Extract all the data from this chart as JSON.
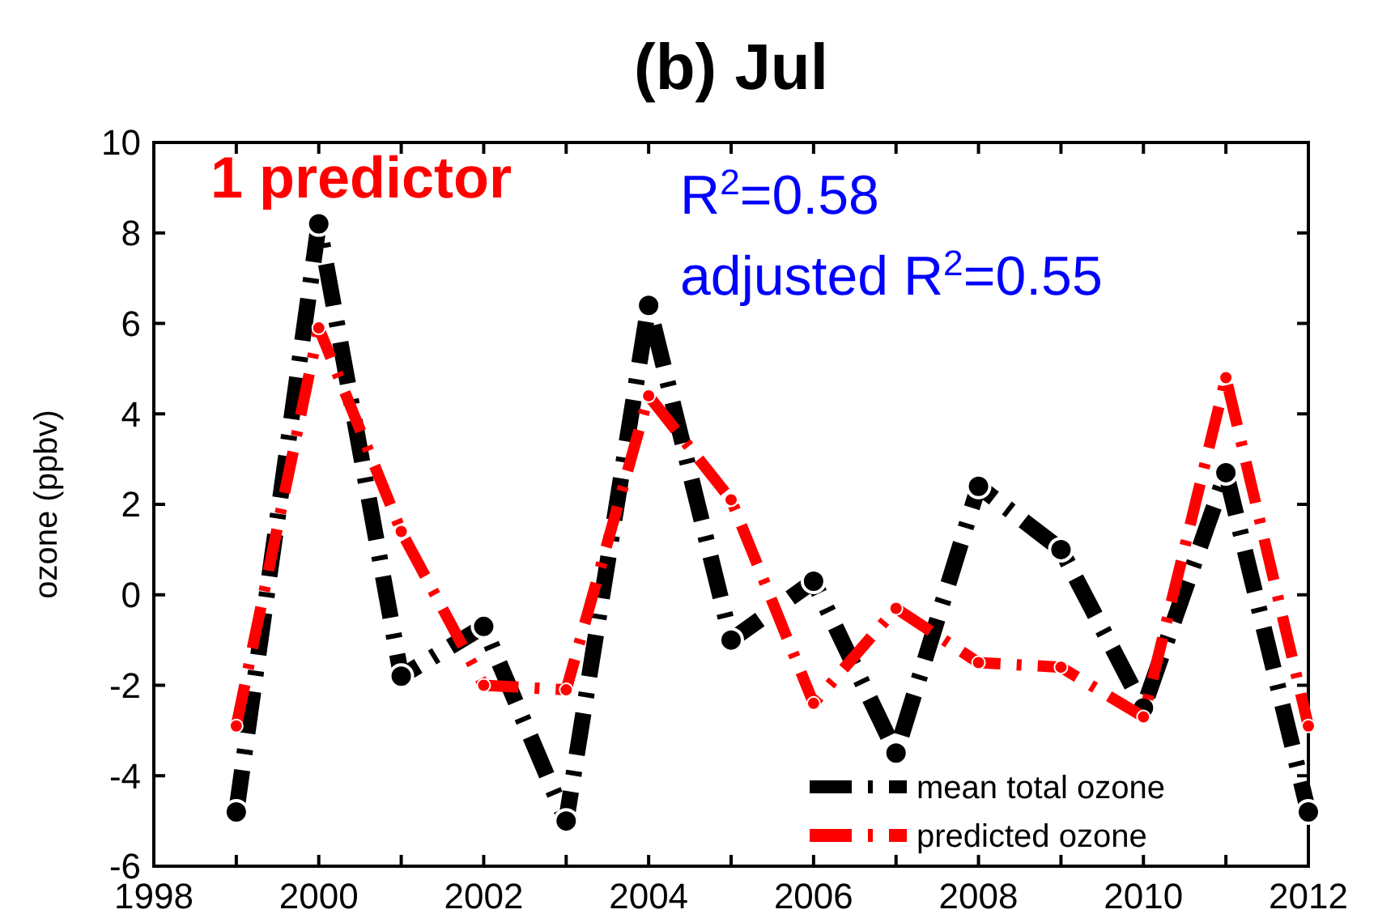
{
  "chart_data": {
    "type": "line",
    "title": "(b) Jul",
    "ylabel": "ozone (ppbv)",
    "annotations": [
      "1 predictor",
      "R$^{2}$=0.58",
      "adjusted R$^{2}$=0.55"
    ],
    "x": [
      1999,
      2000,
      2001,
      2002,
      2003,
      2004,
      2005,
      2006,
      2007,
      2008,
      2009,
      2010,
      2011,
      2012
    ],
    "series": [
      {
        "name": "mean total ozone",
        "color": "#000000",
        "values": [
          -4.8,
          8.2,
          -1.8,
          -0.7,
          -5.0,
          6.4,
          -1.0,
          0.3,
          -3.5,
          2.4,
          1.0,
          -2.5,
          2.7,
          -4.8
        ]
      },
      {
        "name": "predicted ozone",
        "color": "#ff0000",
        "values": [
          -2.9,
          5.9,
          1.4,
          -2.0,
          -2.1,
          4.4,
          2.1,
          -2.4,
          -0.3,
          -1.5,
          -1.6,
          -2.7,
          4.8,
          -2.9
        ]
      }
    ],
    "xlim": [
      1998,
      2012
    ],
    "xticks": [
      1998,
      {
        "value": 1999,
        "label": null
      },
      2000,
      {
        "value": 2001,
        "label": null
      },
      2002,
      {
        "value": 2003,
        "label": null
      },
      2004,
      {
        "value": 2005,
        "label": null
      },
      2006,
      {
        "value": 2007,
        "label": null
      },
      2008,
      {
        "value": 2009,
        "label": null
      },
      2010,
      {
        "value": 2011,
        "label": null
      },
      2012
    ],
    "ylim": [
      -6,
      10
    ],
    "yticks": [
      -6,
      -4,
      -2,
      0,
      2,
      4,
      6,
      8,
      10
    ],
    "grid": false,
    "legend": "bottom right",
    "marker": "circle",
    "line_style": "dashed"
  }
}
